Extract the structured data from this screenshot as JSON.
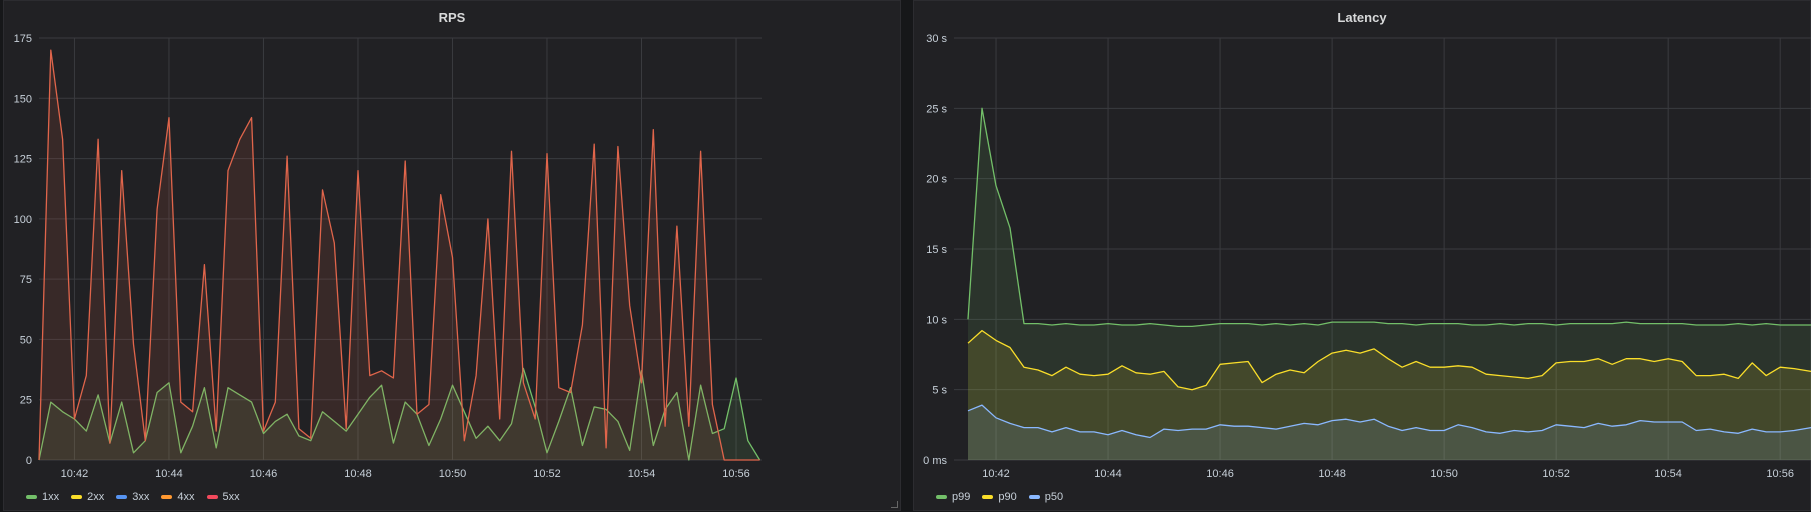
{
  "chart_data": [
    {
      "type": "area",
      "title": "RPS",
      "xlabel": "",
      "ylabel": "",
      "ylim": [
        0,
        175
      ],
      "yticks": [
        "0",
        "25",
        "50",
        "75",
        "100",
        "125",
        "150",
        "175"
      ],
      "ytick_values": [
        0,
        25,
        50,
        75,
        100,
        125,
        150,
        175
      ],
      "xticks": [
        "10:42",
        "10:44",
        "10:46",
        "10:48",
        "10:50",
        "10:52",
        "10:54",
        "10:56"
      ],
      "xtick_values": [
        42,
        44,
        46,
        48,
        50,
        52,
        54,
        56
      ],
      "xlim": [
        41.25,
        56.55
      ],
      "grid": true,
      "legend_placement": "bottom-left",
      "series": [
        {
          "name": "1xx",
          "color": "#73bf69",
          "fill": false,
          "values": []
        },
        {
          "name": "2xx",
          "color": "#fade2a",
          "fill": false,
          "values": []
        },
        {
          "name": "3xx",
          "color": "#5794f2",
          "fill": false,
          "values": []
        },
        {
          "name": "4xx",
          "color": "#ff9830",
          "fill": false,
          "values": []
        },
        {
          "name": "5xx",
          "color": "#f2495c",
          "fill": false,
          "values": []
        },
        {
          "name": "",
          "color": "#73bf69",
          "fill": true,
          "x": [
            41.25,
            41.5,
            41.75,
            42,
            42.25,
            42.5,
            42.75,
            43,
            43.25,
            43.5,
            43.75,
            44,
            44.25,
            44.5,
            44.75,
            45,
            45.25,
            45.5,
            45.75,
            46,
            46.25,
            46.5,
            46.75,
            47,
            47.25,
            47.5,
            47.75,
            48,
            48.25,
            48.5,
            48.75,
            49,
            49.25,
            49.5,
            49.75,
            50,
            50.25,
            50.5,
            50.75,
            51,
            51.25,
            51.5,
            51.75,
            52,
            52.25,
            52.5,
            52.75,
            53,
            53.25,
            53.5,
            53.75,
            54,
            54.25,
            54.5,
            54.75,
            55,
            55.25,
            55.5,
            55.75,
            56,
            56.25,
            56.5
          ],
          "values": [
            0,
            24,
            20,
            17,
            12,
            27,
            7,
            24,
            3,
            8,
            28,
            32,
            3,
            14,
            30,
            5,
            30,
            27,
            24,
            11,
            16,
            19,
            10,
            8,
            20,
            16,
            12,
            19,
            26,
            31,
            7,
            24,
            19,
            6,
            17,
            31,
            20,
            9,
            14,
            8,
            15,
            38,
            22,
            3,
            16,
            30,
            6,
            22,
            21,
            16,
            4,
            37,
            6,
            21,
            28,
            0,
            31,
            11,
            13,
            34,
            8,
            0
          ]
        },
        {
          "name": "",
          "color": "#e0654b",
          "fill": true,
          "x": [
            41.25,
            41.5,
            41.75,
            42,
            42.25,
            42.5,
            42.75,
            43,
            43.25,
            43.5,
            43.75,
            44,
            44.25,
            44.5,
            44.75,
            45,
            45.25,
            45.5,
            45.75,
            46,
            46.25,
            46.5,
            46.75,
            47,
            47.25,
            47.5,
            47.75,
            48,
            48.25,
            48.5,
            48.75,
            49,
            49.25,
            49.5,
            49.75,
            50,
            50.25,
            50.5,
            50.75,
            51,
            51.25,
            51.5,
            51.75,
            52,
            52.25,
            52.5,
            52.75,
            53,
            53.25,
            53.5,
            53.75,
            54,
            54.25,
            54.5,
            54.75,
            55,
            55.25,
            55.5,
            55.75,
            56,
            56.25,
            56.5
          ],
          "values": [
            0,
            170,
            133,
            17,
            35,
            133,
            7,
            120,
            48,
            8,
            104,
            142,
            24,
            20,
            81,
            12,
            120,
            133,
            142,
            12,
            24,
            126,
            13,
            9,
            112,
            90,
            13,
            120,
            35,
            37,
            34,
            124,
            19,
            23,
            110,
            84,
            8,
            35,
            100,
            17,
            128,
            32,
            17,
            127,
            30,
            28,
            56,
            131,
            5,
            130,
            64,
            32,
            137,
            14,
            97,
            14,
            128,
            23,
            0,
            0,
            0,
            0
          ]
        }
      ]
    },
    {
      "type": "area",
      "title": "Latency",
      "xlabel": "",
      "ylabel": "",
      "ylim": [
        0,
        30
      ],
      "yticks": [
        "0 ms",
        "5 s",
        "10 s",
        "15 s",
        "20 s",
        "25 s",
        "30 s"
      ],
      "ytick_values": [
        0,
        5,
        10,
        15,
        20,
        25,
        30
      ],
      "xticks": [
        "10:42",
        "10:44",
        "10:46",
        "10:48",
        "10:50",
        "10:52",
        "10:54",
        "10:56"
      ],
      "xtick_values": [
        42,
        44,
        46,
        48,
        50,
        52,
        54,
        56
      ],
      "xlim": [
        41.25,
        56.55
      ],
      "grid": true,
      "legend_placement": "bottom-left",
      "series": [
        {
          "name": "p99",
          "color": "#73bf69",
          "fill": true,
          "x": [
            41.5,
            41.75,
            42,
            42.25,
            42.5,
            42.75,
            43,
            43.25,
            43.5,
            43.75,
            44,
            44.25,
            44.5,
            44.75,
            45,
            45.25,
            45.5,
            45.75,
            46,
            46.25,
            46.5,
            46.75,
            47,
            47.25,
            47.5,
            47.75,
            48,
            48.25,
            48.5,
            48.75,
            49,
            49.25,
            49.5,
            49.75,
            50,
            50.25,
            50.5,
            50.75,
            51,
            51.25,
            51.5,
            51.75,
            52,
            52.25,
            52.5,
            52.75,
            53,
            53.25,
            53.5,
            53.75,
            54,
            54.25,
            54.5,
            54.75,
            55,
            55.25,
            55.5,
            55.75,
            56,
            56.25,
            56.55
          ],
          "values": [
            10,
            25,
            19.5,
            16.5,
            9.7,
            9.7,
            9.6,
            9.7,
            9.6,
            9.6,
            9.7,
            9.6,
            9.6,
            9.7,
            9.6,
            9.5,
            9.5,
            9.6,
            9.7,
            9.7,
            9.7,
            9.6,
            9.7,
            9.6,
            9.7,
            9.6,
            9.8,
            9.8,
            9.8,
            9.8,
            9.7,
            9.7,
            9.6,
            9.7,
            9.7,
            9.7,
            9.6,
            9.6,
            9.7,
            9.6,
            9.7,
            9.7,
            9.6,
            9.7,
            9.7,
            9.7,
            9.7,
            9.8,
            9.7,
            9.7,
            9.7,
            9.7,
            9.6,
            9.6,
            9.6,
            9.7,
            9.6,
            9.7,
            9.6,
            9.6,
            9.6
          ]
        },
        {
          "name": "p90",
          "color": "#fade2a",
          "fill": true,
          "x": [
            41.5,
            41.75,
            42,
            42.25,
            42.5,
            42.75,
            43,
            43.25,
            43.5,
            43.75,
            44,
            44.25,
            44.5,
            44.75,
            45,
            45.25,
            45.5,
            45.75,
            46,
            46.25,
            46.5,
            46.75,
            47,
            47.25,
            47.5,
            47.75,
            48,
            48.25,
            48.5,
            48.75,
            49,
            49.25,
            49.5,
            49.75,
            50,
            50.25,
            50.5,
            50.75,
            51,
            51.25,
            51.5,
            51.75,
            52,
            52.25,
            52.5,
            52.75,
            53,
            53.25,
            53.5,
            53.75,
            54,
            54.25,
            54.5,
            54.75,
            55,
            55.25,
            55.5,
            55.75,
            56,
            56.25,
            56.55
          ],
          "values": [
            8.3,
            9.2,
            8.5,
            8,
            6.6,
            6.4,
            6,
            6.6,
            6.1,
            6,
            6.1,
            6.7,
            6.2,
            6.1,
            6.3,
            5.2,
            5,
            5.3,
            6.8,
            6.9,
            7,
            5.5,
            6.1,
            6.4,
            6.2,
            7,
            7.6,
            7.8,
            7.6,
            7.9,
            7.2,
            6.6,
            7,
            6.6,
            6.6,
            6.7,
            6.6,
            6.1,
            6,
            5.9,
            5.8,
            6,
            6.9,
            7,
            7,
            7.2,
            6.8,
            7.2,
            7.2,
            7,
            7.2,
            7,
            6,
            6,
            6.1,
            5.8,
            6.9,
            6,
            6.6,
            6.5,
            6.3
          ]
        },
        {
          "name": "p50",
          "color": "#8ab8ff",
          "fill": true,
          "x": [
            41.5,
            41.75,
            42,
            42.25,
            42.5,
            42.75,
            43,
            43.25,
            43.5,
            43.75,
            44,
            44.25,
            44.5,
            44.75,
            45,
            45.25,
            45.5,
            45.75,
            46,
            46.25,
            46.5,
            46.75,
            47,
            47.25,
            47.5,
            47.75,
            48,
            48.25,
            48.5,
            48.75,
            49,
            49.25,
            49.5,
            49.75,
            50,
            50.25,
            50.5,
            50.75,
            51,
            51.25,
            51.5,
            51.75,
            52,
            52.25,
            52.5,
            52.75,
            53,
            53.25,
            53.5,
            53.75,
            54,
            54.25,
            54.5,
            54.75,
            55,
            55.25,
            55.5,
            55.75,
            56,
            56.25,
            56.55
          ],
          "values": [
            3.5,
            3.9,
            3,
            2.6,
            2.3,
            2.3,
            2,
            2.3,
            2,
            2,
            1.8,
            2.1,
            1.8,
            1.6,
            2.2,
            2.1,
            2.2,
            2.2,
            2.5,
            2.4,
            2.4,
            2.3,
            2.2,
            2.4,
            2.6,
            2.5,
            2.8,
            2.9,
            2.7,
            2.9,
            2.4,
            2.1,
            2.3,
            2.1,
            2.1,
            2.5,
            2.3,
            2,
            1.9,
            2.1,
            2,
            2.1,
            2.5,
            2.4,
            2.3,
            2.6,
            2.4,
            2.5,
            2.8,
            2.7,
            2.7,
            2.7,
            2.1,
            2.2,
            2,
            1.9,
            2.2,
            2,
            2,
            2.1,
            2.3
          ]
        }
      ]
    }
  ]
}
